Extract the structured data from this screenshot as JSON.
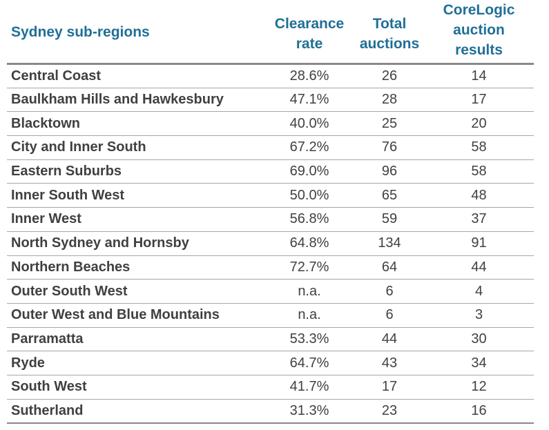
{
  "table": {
    "headers": {
      "region": "Sydney sub-regions",
      "rate_line1": "Clearance",
      "rate_line2": "rate",
      "total_line1": "Total",
      "total_line2": "auctions",
      "cl_line1": "CoreLogic",
      "cl_line2": "auction",
      "cl_line3": "results"
    },
    "rows": [
      {
        "region": "Central Coast",
        "rate": "28.6%",
        "total": "26",
        "results": "14"
      },
      {
        "region": "Baulkham Hills and Hawkesbury",
        "rate": "47.1%",
        "total": "28",
        "results": "17"
      },
      {
        "region": "Blacktown",
        "rate": "40.0%",
        "total": "25",
        "results": "20"
      },
      {
        "region": "City and Inner South",
        "rate": "67.2%",
        "total": "76",
        "results": "58"
      },
      {
        "region": "Eastern Suburbs",
        "rate": "69.0%",
        "total": "96",
        "results": "58"
      },
      {
        "region": "Inner South West",
        "rate": "50.0%",
        "total": "65",
        "results": "48"
      },
      {
        "region": "Inner West",
        "rate": "56.8%",
        "total": "59",
        "results": "37"
      },
      {
        "region": "North Sydney and Hornsby",
        "rate": "64.8%",
        "total": "134",
        "results": "91"
      },
      {
        "region": "Northern Beaches",
        "rate": "72.7%",
        "total": "64",
        "results": "44"
      },
      {
        "region": "Outer South West",
        "rate": "n.a.",
        "total": "6",
        "results": "4"
      },
      {
        "region": "Outer West and Blue Mountains",
        "rate": "n.a.",
        "total": "6",
        "results": "3"
      },
      {
        "region": "Parramatta",
        "rate": "53.3%",
        "total": "44",
        "results": "30"
      },
      {
        "region": "Ryde",
        "rate": "64.7%",
        "total": "43",
        "results": "34"
      },
      {
        "region": "South West",
        "rate": "41.7%",
        "total": "17",
        "results": "12"
      },
      {
        "region": "Sutherland",
        "rate": "31.3%",
        "total": "23",
        "results": "16"
      }
    ]
  },
  "colors": {
    "header_text": "#1f6f97",
    "body_text": "#404040",
    "rule": "#888888"
  }
}
